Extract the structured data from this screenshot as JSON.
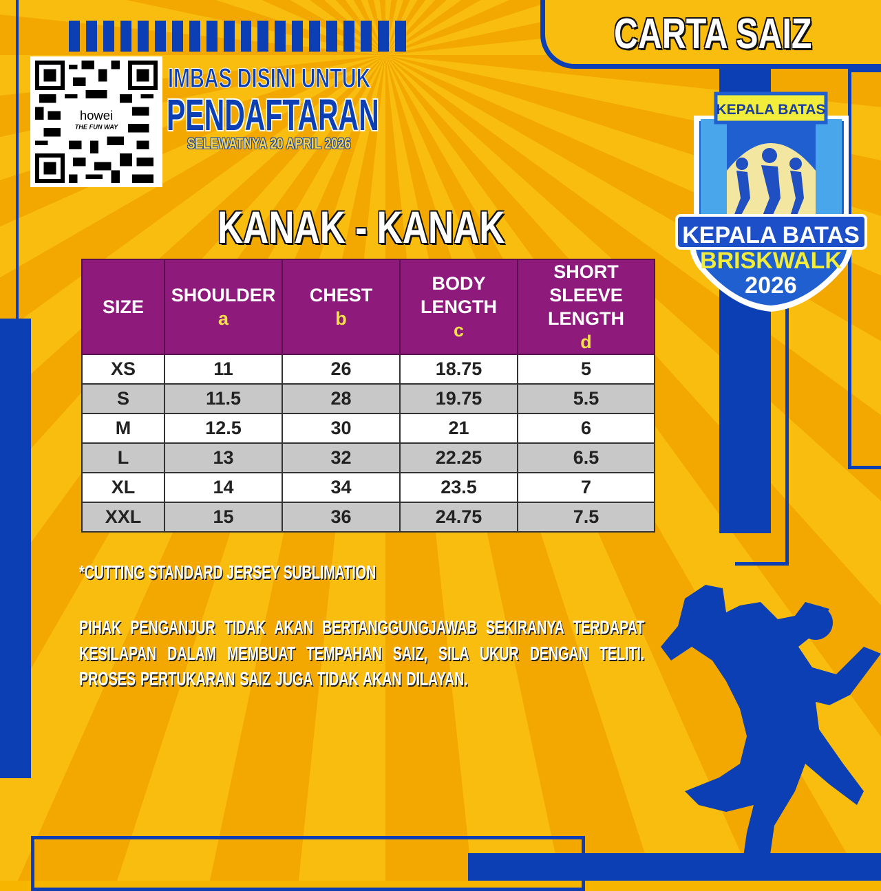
{
  "header": {
    "tab_title": "CARTA SAIZ",
    "scan_line1": "IMBAS DISINI UNTUK",
    "scan_line2": "PENDAFTARAN",
    "deadline": "SELEWATNYA 20 APRIL 2026",
    "qr_brand": "howei",
    "qr_tagline": "THE FUN WAY"
  },
  "logo": {
    "top_sign": "KEPALA BATAS",
    "line1": "KEPALA BATAS",
    "line2": "BRISKWALK",
    "line3": "2026"
  },
  "section_title": "KANAK - KANAK",
  "table": {
    "headers": [
      {
        "label": "SIZE",
        "sub": ""
      },
      {
        "label": "SHOULDER",
        "sub": "a"
      },
      {
        "label": "CHEST",
        "sub": "b"
      },
      {
        "label": "BODY LENGTH",
        "sub": "c"
      },
      {
        "label": "SHORT SLEEVE LENGTH",
        "sub": "d"
      }
    ],
    "rows": [
      [
        "XS",
        "11",
        "26",
        "18.75",
        "5"
      ],
      [
        "S",
        "11.5",
        "28",
        "19.75",
        "5.5"
      ],
      [
        "M",
        "12.5",
        "30",
        "21",
        "6"
      ],
      [
        "L",
        "13",
        "32",
        "22.25",
        "6.5"
      ],
      [
        "XL",
        "14",
        "34",
        "23.5",
        "7"
      ],
      [
        "XXL",
        "15",
        "36",
        "24.75",
        "7.5"
      ]
    ]
  },
  "note": "*CUTTING STANDARD JERSEY SUBLIMATION",
  "disclaimer": "PIHAK PENGANJUR TIDAK AKAN BERTANGGUNGJAWAB SEKIRANYA TERDAPAT KESILAPAN DALAM MEMBUAT TEMPAHAN SAIZ, SILA UKUR DENGAN TELITI. PROSES PERTUKARAN SAIZ JUGA TIDAK AKAN DILAYAN.",
  "colors": {
    "background": "#f7b500",
    "blue": "#0b3fb3",
    "header_purple": "#8e1b7c",
    "row_gray": "#c8c8c8",
    "sub_yellow": "#f4e04a"
  }
}
